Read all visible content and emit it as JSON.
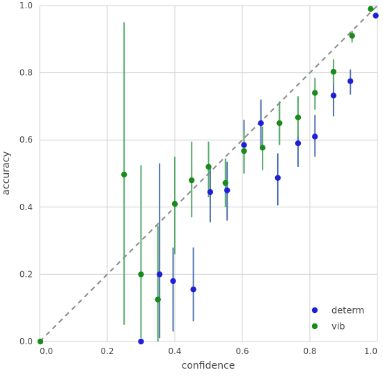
{
  "chart_data": {
    "type": "scatter",
    "title": "",
    "xlabel": "confidence",
    "ylabel": "accuracy",
    "xlim": [
      0.0,
      1.0
    ],
    "ylim": [
      0.0,
      1.0
    ],
    "x_ticks": [
      "0.0",
      "0.2",
      "0.4",
      "0.6",
      "0.8",
      "1.0"
    ],
    "y_ticks": [
      "0.0",
      "0.2",
      "0.4",
      "0.6",
      "0.8",
      "1.0"
    ],
    "grid": true,
    "legend_position": "bottom-right",
    "reference_line": {
      "style": "dashed",
      "color": "#888888",
      "from": [
        0.0,
        0.0
      ],
      "to": [
        1.0,
        1.0
      ]
    },
    "series": [
      {
        "name": "determ",
        "color": "#1f1fd6",
        "err_color": "#4c72b0",
        "points": [
          {
            "x": 0.3,
            "y": 0.0,
            "lo": 0.0,
            "hi": 0.0
          },
          {
            "x": 0.355,
            "y": 0.2,
            "lo": 0.01,
            "hi": 0.53
          },
          {
            "x": 0.395,
            "y": 0.18,
            "lo": 0.03,
            "hi": 0.28
          },
          {
            "x": 0.455,
            "y": 0.155,
            "lo": 0.06,
            "hi": 0.28
          },
          {
            "x": 0.505,
            "y": 0.445,
            "lo": 0.355,
            "hi": 0.515
          },
          {
            "x": 0.555,
            "y": 0.45,
            "lo": 0.36,
            "hi": 0.535
          },
          {
            "x": 0.605,
            "y": 0.585,
            "lo": 0.5,
            "hi": 0.66
          },
          {
            "x": 0.655,
            "y": 0.65,
            "lo": 0.58,
            "hi": 0.72
          },
          {
            "x": 0.705,
            "y": 0.487,
            "lo": 0.405,
            "hi": 0.56
          },
          {
            "x": 0.765,
            "y": 0.59,
            "lo": 0.52,
            "hi": 0.655
          },
          {
            "x": 0.815,
            "y": 0.61,
            "lo": 0.55,
            "hi": 0.675
          },
          {
            "x": 0.87,
            "y": 0.732,
            "lo": 0.67,
            "hi": 0.79
          },
          {
            "x": 0.92,
            "y": 0.775,
            "lo": 0.735,
            "hi": 0.81
          },
          {
            "x": 0.995,
            "y": 0.97,
            "lo": 0.97,
            "hi": 0.97
          }
        ]
      },
      {
        "name": "vib",
        "color": "#1a8a1a",
        "err_color": "#55a868",
        "points": [
          {
            "x": 0.002,
            "y": 0.0,
            "lo": 0.0,
            "hi": 0.0
          },
          {
            "x": 0.25,
            "y": 0.497,
            "lo": 0.05,
            "hi": 0.95
          },
          {
            "x": 0.3,
            "y": 0.2,
            "lo": 0.01,
            "hi": 0.525
          },
          {
            "x": 0.35,
            "y": 0.125,
            "lo": 0.0,
            "hi": 0.345
          },
          {
            "x": 0.4,
            "y": 0.41,
            "lo": 0.26,
            "hi": 0.55
          },
          {
            "x": 0.45,
            "y": 0.48,
            "lo": 0.37,
            "hi": 0.595
          },
          {
            "x": 0.5,
            "y": 0.52,
            "lo": 0.43,
            "hi": 0.595
          },
          {
            "x": 0.55,
            "y": 0.472,
            "lo": 0.4,
            "hi": 0.545
          },
          {
            "x": 0.605,
            "y": 0.567,
            "lo": 0.5,
            "hi": 0.625
          },
          {
            "x": 0.66,
            "y": 0.577,
            "lo": 0.51,
            "hi": 0.64
          },
          {
            "x": 0.71,
            "y": 0.65,
            "lo": 0.585,
            "hi": 0.715
          },
          {
            "x": 0.765,
            "y": 0.667,
            "lo": 0.61,
            "hi": 0.73
          },
          {
            "x": 0.815,
            "y": 0.74,
            "lo": 0.69,
            "hi": 0.785
          },
          {
            "x": 0.87,
            "y": 0.803,
            "lo": 0.765,
            "hi": 0.84
          },
          {
            "x": 0.925,
            "y": 0.91,
            "lo": 0.89,
            "hi": 0.925
          },
          {
            "x": 0.98,
            "y": 0.99,
            "lo": 0.99,
            "hi": 0.99
          }
        ]
      }
    ]
  }
}
